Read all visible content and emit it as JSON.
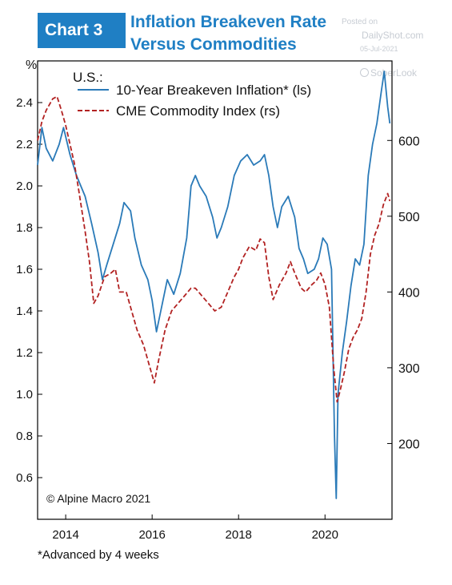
{
  "header": {
    "badge": "Chart 3",
    "title_line1": "Inflation Breakeven Rate",
    "title_line2": "Versus Commodities"
  },
  "watermark": {
    "posted_on": "Posted on",
    "site": "DailyShot.com",
    "date": "05-Jul-2021",
    "handle": "SoberLook"
  },
  "footnote": "*Advanced by 4 weeks",
  "colors": {
    "accent": "#1f7fc4",
    "series_left": "#2a7ab8",
    "series_right": "#b22222"
  },
  "chart_data": {
    "type": "line",
    "title": "Inflation Breakeven Rate Versus Commodities",
    "left_unit": "%",
    "legend_title": "U.S.:",
    "legend_position": "top-left",
    "source": "© Alpine Macro 2021",
    "xlim": [
      2013.35,
      2021.55
    ],
    "x_ticks": [
      2014,
      2016,
      2018,
      2020
    ],
    "x_tick_labels": [
      "2014",
      "2016",
      "2018",
      "2020"
    ],
    "ylim_left": [
      0.4,
      2.6
    ],
    "y_ticks_left": [
      0.6,
      0.8,
      1.0,
      1.2,
      1.4,
      1.6,
      1.8,
      2.0,
      2.2,
      2.4
    ],
    "y_tick_labels_left": [
      "0.6",
      "0.8",
      "1.0",
      "1.2",
      "1.4",
      "1.6",
      "1.8",
      "2.0",
      "2.2",
      "2.4"
    ],
    "ylim_right": [
      100,
      705
    ],
    "y_ticks_right": [
      200,
      300,
      400,
      500,
      600
    ],
    "y_tick_labels_right": [
      "200",
      "300",
      "400",
      "500",
      "600"
    ],
    "grid": false,
    "series": [
      {
        "name": "10-Year Breakeven Inflation* (ls)",
        "axis": "left",
        "style": "solid",
        "points": [
          [
            2013.35,
            2.1
          ],
          [
            2013.45,
            2.28
          ],
          [
            2013.55,
            2.18
          ],
          [
            2013.7,
            2.12
          ],
          [
            2013.85,
            2.2
          ],
          [
            2013.95,
            2.28
          ],
          [
            2014.1,
            2.15
          ],
          [
            2014.25,
            2.05
          ],
          [
            2014.45,
            1.95
          ],
          [
            2014.6,
            1.82
          ],
          [
            2014.75,
            1.68
          ],
          [
            2014.85,
            1.55
          ],
          [
            2014.95,
            1.62
          ],
          [
            2015.1,
            1.72
          ],
          [
            2015.25,
            1.82
          ],
          [
            2015.35,
            1.92
          ],
          [
            2015.5,
            1.88
          ],
          [
            2015.6,
            1.75
          ],
          [
            2015.75,
            1.62
          ],
          [
            2015.9,
            1.55
          ],
          [
            2016.0,
            1.45
          ],
          [
            2016.1,
            1.3
          ],
          [
            2016.2,
            1.4
          ],
          [
            2016.35,
            1.55
          ],
          [
            2016.5,
            1.48
          ],
          [
            2016.65,
            1.58
          ],
          [
            2016.8,
            1.75
          ],
          [
            2016.9,
            2.0
          ],
          [
            2017.0,
            2.05
          ],
          [
            2017.1,
            2.0
          ],
          [
            2017.25,
            1.95
          ],
          [
            2017.4,
            1.85
          ],
          [
            2017.5,
            1.75
          ],
          [
            2017.6,
            1.8
          ],
          [
            2017.75,
            1.9
          ],
          [
            2017.9,
            2.05
          ],
          [
            2018.05,
            2.12
          ],
          [
            2018.2,
            2.15
          ],
          [
            2018.35,
            2.1
          ],
          [
            2018.5,
            2.12
          ],
          [
            2018.6,
            2.15
          ],
          [
            2018.7,
            2.05
          ],
          [
            2018.8,
            1.9
          ],
          [
            2018.9,
            1.8
          ],
          [
            2019.0,
            1.9
          ],
          [
            2019.15,
            1.95
          ],
          [
            2019.3,
            1.85
          ],
          [
            2019.4,
            1.7
          ],
          [
            2019.5,
            1.65
          ],
          [
            2019.6,
            1.58
          ],
          [
            2019.75,
            1.6
          ],
          [
            2019.85,
            1.65
          ],
          [
            2019.95,
            1.75
          ],
          [
            2020.05,
            1.72
          ],
          [
            2020.15,
            1.6
          ],
          [
            2020.22,
            0.8
          ],
          [
            2020.26,
            0.5
          ],
          [
            2020.3,
            1.0
          ],
          [
            2020.4,
            1.2
          ],
          [
            2020.5,
            1.35
          ],
          [
            2020.6,
            1.52
          ],
          [
            2020.7,
            1.65
          ],
          [
            2020.8,
            1.62
          ],
          [
            2020.9,
            1.72
          ],
          [
            2021.0,
            2.05
          ],
          [
            2021.1,
            2.2
          ],
          [
            2021.2,
            2.3
          ],
          [
            2021.3,
            2.45
          ],
          [
            2021.37,
            2.55
          ],
          [
            2021.45,
            2.38
          ],
          [
            2021.5,
            2.3
          ]
        ]
      },
      {
        "name": "CME Commodity Index (rs)",
        "axis": "right",
        "style": "dashed",
        "points": [
          [
            2013.35,
            600
          ],
          [
            2013.45,
            625
          ],
          [
            2013.55,
            640
          ],
          [
            2013.7,
            655
          ],
          [
            2013.8,
            658
          ],
          [
            2013.9,
            640
          ],
          [
            2014.0,
            620
          ],
          [
            2014.1,
            595
          ],
          [
            2014.2,
            570
          ],
          [
            2014.3,
            535
          ],
          [
            2014.45,
            480
          ],
          [
            2014.55,
            440
          ],
          [
            2014.65,
            385
          ],
          [
            2014.75,
            395
          ],
          [
            2014.9,
            420
          ],
          [
            2015.05,
            425
          ],
          [
            2015.15,
            430
          ],
          [
            2015.25,
            400
          ],
          [
            2015.4,
            400
          ],
          [
            2015.5,
            380
          ],
          [
            2015.65,
            350
          ],
          [
            2015.8,
            330
          ],
          [
            2015.95,
            300
          ],
          [
            2016.05,
            280
          ],
          [
            2016.15,
            310
          ],
          [
            2016.3,
            350
          ],
          [
            2016.45,
            375
          ],
          [
            2016.6,
            385
          ],
          [
            2016.75,
            395
          ],
          [
            2016.9,
            405
          ],
          [
            2017.0,
            405
          ],
          [
            2017.15,
            395
          ],
          [
            2017.3,
            385
          ],
          [
            2017.45,
            375
          ],
          [
            2017.6,
            380
          ],
          [
            2017.75,
            400
          ],
          [
            2017.9,
            420
          ],
          [
            2018.0,
            430
          ],
          [
            2018.1,
            445
          ],
          [
            2018.25,
            460
          ],
          [
            2018.4,
            455
          ],
          [
            2018.5,
            470
          ],
          [
            2018.6,
            465
          ],
          [
            2018.7,
            420
          ],
          [
            2018.8,
            390
          ],
          [
            2018.95,
            410
          ],
          [
            2019.1,
            425
          ],
          [
            2019.2,
            440
          ],
          [
            2019.3,
            425
          ],
          [
            2019.45,
            405
          ],
          [
            2019.55,
            400
          ],
          [
            2019.7,
            410
          ],
          [
            2019.8,
            415
          ],
          [
            2019.9,
            425
          ],
          [
            2020.0,
            410
          ],
          [
            2020.1,
            380
          ],
          [
            2020.2,
            300
          ],
          [
            2020.28,
            255
          ],
          [
            2020.35,
            270
          ],
          [
            2020.45,
            295
          ],
          [
            2020.55,
            325
          ],
          [
            2020.65,
            340
          ],
          [
            2020.75,
            350
          ],
          [
            2020.85,
            365
          ],
          [
            2020.95,
            400
          ],
          [
            2021.05,
            450
          ],
          [
            2021.15,
            475
          ],
          [
            2021.25,
            490
          ],
          [
            2021.35,
            515
          ],
          [
            2021.45,
            530
          ],
          [
            2021.5,
            520
          ]
        ]
      }
    ]
  }
}
